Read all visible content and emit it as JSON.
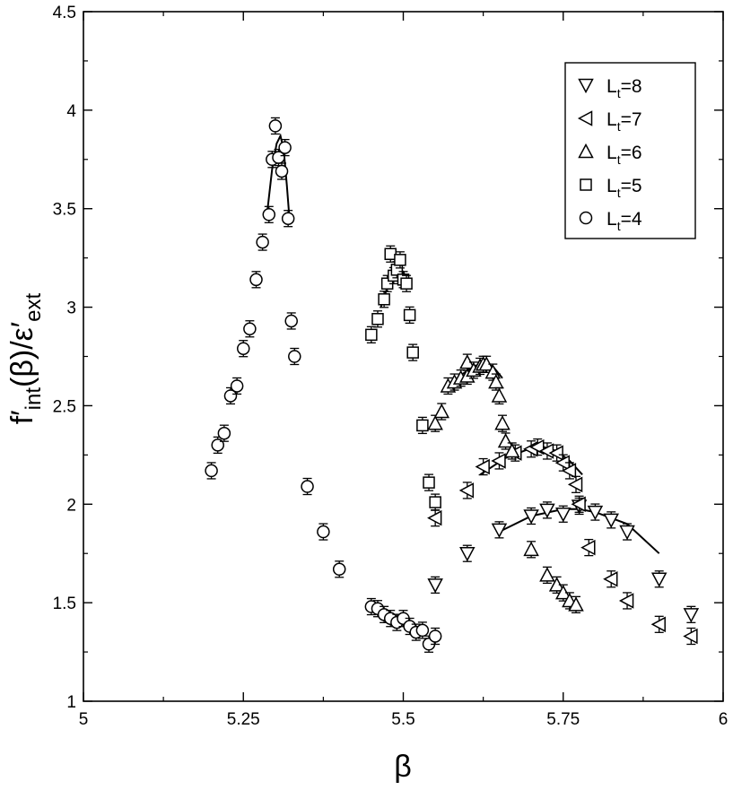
{
  "chart_data": {
    "type": "scatter",
    "title": "",
    "xlabel": "β",
    "ylabel_parts": {
      "main": "f′",
      "sub": "int",
      "mid": "(β)/ε′",
      "sub2": "ext"
    },
    "xlim": [
      5,
      6
    ],
    "ylim": [
      1,
      4.5
    ],
    "x_ticks": [
      "5",
      "5.25",
      "5.5",
      "5.75",
      "6"
    ],
    "y_ticks": [
      "1",
      "1.5",
      "2",
      "2.5",
      "3",
      "3.5",
      "4",
      "4.5"
    ],
    "grid": false,
    "legend_position": "top-right",
    "series": [
      {
        "name_main": "L",
        "name_sub": "t",
        "name_suffix": "=8",
        "marker": "triangle-down",
        "points": [
          [
            5.55,
            1.59
          ],
          [
            5.6,
            1.75
          ],
          [
            5.65,
            1.87
          ],
          [
            5.7,
            1.94
          ],
          [
            5.725,
            1.97
          ],
          [
            5.75,
            1.95
          ],
          [
            5.775,
            1.99
          ],
          [
            5.8,
            1.96
          ],
          [
            5.825,
            1.92
          ],
          [
            5.85,
            1.86
          ],
          [
            5.9,
            1.62
          ],
          [
            5.95,
            1.44
          ]
        ],
        "fit": [
          [
            5.65,
            1.86
          ],
          [
            5.7,
            1.94
          ],
          [
            5.75,
            1.975
          ],
          [
            5.775,
            1.975
          ],
          [
            5.8,
            1.96
          ],
          [
            5.85,
            1.9
          ],
          [
            5.9,
            1.75
          ]
        ]
      },
      {
        "name_main": "L",
        "name_sub": "t",
        "name_suffix": "=7",
        "marker": "triangle-left",
        "points": [
          [
            5.55,
            1.93
          ],
          [
            5.6,
            2.07
          ],
          [
            5.625,
            2.19
          ],
          [
            5.65,
            2.22
          ],
          [
            5.675,
            2.26
          ],
          [
            5.7,
            2.28
          ],
          [
            5.71,
            2.29
          ],
          [
            5.725,
            2.27
          ],
          [
            5.74,
            2.26
          ],
          [
            5.75,
            2.21
          ],
          [
            5.76,
            2.17
          ],
          [
            5.77,
            2.1
          ],
          [
            5.775,
            2.0
          ],
          [
            5.79,
            1.78
          ],
          [
            5.825,
            1.62
          ],
          [
            5.85,
            1.51
          ],
          [
            5.9,
            1.39
          ],
          [
            5.95,
            1.33
          ]
        ],
        "fit": [
          [
            5.62,
            2.15
          ],
          [
            5.66,
            2.235
          ],
          [
            5.7,
            2.285
          ],
          [
            5.72,
            2.29
          ],
          [
            5.74,
            2.27
          ],
          [
            5.76,
            2.22
          ],
          [
            5.78,
            2.15
          ]
        ]
      },
      {
        "name_main": "L",
        "name_sub": "t",
        "name_suffix": "=6",
        "marker": "triangle-up",
        "points": [
          [
            5.55,
            2.41
          ],
          [
            5.56,
            2.47
          ],
          [
            5.57,
            2.6
          ],
          [
            5.58,
            2.62
          ],
          [
            5.59,
            2.64
          ],
          [
            5.6,
            2.65
          ],
          [
            5.6,
            2.72
          ],
          [
            5.61,
            2.68
          ],
          [
            5.62,
            2.7
          ],
          [
            5.625,
            2.71
          ],
          [
            5.63,
            2.71
          ],
          [
            5.64,
            2.67
          ],
          [
            5.645,
            2.62
          ],
          [
            5.65,
            2.55
          ],
          [
            5.655,
            2.41
          ],
          [
            5.66,
            2.32
          ],
          [
            5.67,
            2.27
          ],
          [
            5.7,
            1.77
          ],
          [
            5.725,
            1.64
          ],
          [
            5.74,
            1.59
          ],
          [
            5.75,
            1.55
          ],
          [
            5.76,
            1.51
          ],
          [
            5.77,
            1.49
          ]
        ],
        "fit": [
          [
            5.57,
            2.58
          ],
          [
            5.59,
            2.655
          ],
          [
            5.61,
            2.7
          ],
          [
            5.625,
            2.715
          ],
          [
            5.64,
            2.7
          ],
          [
            5.655,
            2.64
          ]
        ]
      },
      {
        "name_main": "L",
        "name_sub": "t",
        "name_suffix": "=5",
        "marker": "square",
        "points": [
          [
            5.45,
            2.86
          ],
          [
            5.46,
            2.94
          ],
          [
            5.47,
            3.04
          ],
          [
            5.475,
            3.12
          ],
          [
            5.48,
            3.27
          ],
          [
            5.485,
            3.16
          ],
          [
            5.49,
            3.19
          ],
          [
            5.495,
            3.24
          ],
          [
            5.5,
            3.14
          ],
          [
            5.505,
            3.12
          ],
          [
            5.51,
            2.96
          ],
          [
            5.515,
            2.77
          ],
          [
            5.53,
            2.4
          ],
          [
            5.54,
            2.11
          ],
          [
            5.55,
            2.01
          ]
        ],
        "fit": [
          [
            5.465,
            3.0
          ],
          [
            5.475,
            3.1
          ],
          [
            5.485,
            3.18
          ],
          [
            5.492,
            3.2
          ],
          [
            5.5,
            3.18
          ],
          [
            5.508,
            3.12
          ]
        ]
      },
      {
        "name_main": "L",
        "name_sub": "t",
        "name_suffix": "=4",
        "marker": "circle",
        "points": [
          [
            5.2,
            2.17
          ],
          [
            5.21,
            2.3
          ],
          [
            5.22,
            2.36
          ],
          [
            5.23,
            2.55
          ],
          [
            5.24,
            2.6
          ],
          [
            5.25,
            2.79
          ],
          [
            5.26,
            2.89
          ],
          [
            5.27,
            3.14
          ],
          [
            5.28,
            3.33
          ],
          [
            5.29,
            3.47
          ],
          [
            5.295,
            3.75
          ],
          [
            5.3,
            3.92
          ],
          [
            5.305,
            3.76
          ],
          [
            5.31,
            3.69
          ],
          [
            5.315,
            3.81
          ],
          [
            5.32,
            3.45
          ],
          [
            5.325,
            2.93
          ],
          [
            5.33,
            2.75
          ],
          [
            5.35,
            2.09
          ],
          [
            5.375,
            1.86
          ],
          [
            5.4,
            1.67
          ],
          [
            5.45,
            1.48
          ],
          [
            5.46,
            1.47
          ],
          [
            5.47,
            1.44
          ],
          [
            5.48,
            1.42
          ],
          [
            5.49,
            1.4
          ],
          [
            5.5,
            1.42
          ],
          [
            5.51,
            1.38
          ],
          [
            5.52,
            1.35
          ],
          [
            5.53,
            1.36
          ],
          [
            5.54,
            1.29
          ],
          [
            5.55,
            1.33
          ]
        ],
        "fit": [
          [
            5.288,
            3.5
          ],
          [
            5.295,
            3.7
          ],
          [
            5.302,
            3.83
          ],
          [
            5.308,
            3.87
          ],
          [
            5.313,
            3.8
          ],
          [
            5.318,
            3.62
          ],
          [
            5.322,
            3.45
          ]
        ]
      }
    ]
  }
}
